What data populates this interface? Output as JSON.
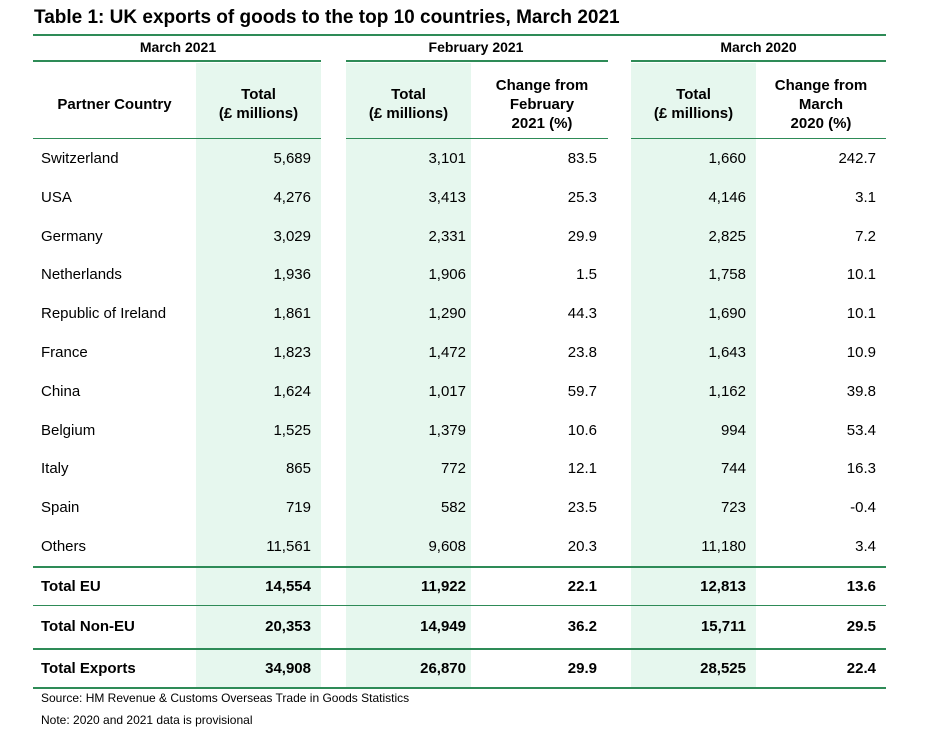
{
  "title": "Table 1: UK exports of goods to the top 10 countries, March 2021",
  "groups": {
    "march2021": "March 2021",
    "feb2021": "February 2021",
    "march2020": "March 2020"
  },
  "headers": {
    "country": "Partner Country",
    "total_mar21": "Total\n(£ millions)",
    "total_feb21": "Total\n(£ millions)",
    "change_feb": "Change from\nFebruary\n2021 (%)",
    "total_mar20": "Total\n(£ millions)",
    "change_mar": "Change from\nMarch\n2020 (%)"
  },
  "rows": [
    {
      "country": "Switzerland",
      "mar21": "5,689",
      "feb21": "3,101",
      "chg_feb": "83.5",
      "mar20": "1,660",
      "chg_mar": "242.7"
    },
    {
      "country": "USA",
      "mar21": "4,276",
      "feb21": "3,413",
      "chg_feb": "25.3",
      "mar20": "4,146",
      "chg_mar": "3.1"
    },
    {
      "country": "Germany",
      "mar21": "3,029",
      "feb21": "2,331",
      "chg_feb": "29.9",
      "mar20": "2,825",
      "chg_mar": "7.2"
    },
    {
      "country": "Netherlands",
      "mar21": "1,936",
      "feb21": "1,906",
      "chg_feb": "1.5",
      "mar20": "1,758",
      "chg_mar": "10.1"
    },
    {
      "country": "Republic of Ireland",
      "mar21": "1,861",
      "feb21": "1,290",
      "chg_feb": "44.3",
      "mar20": "1,690",
      "chg_mar": "10.1"
    },
    {
      "country": "France",
      "mar21": "1,823",
      "feb21": "1,472",
      "chg_feb": "23.8",
      "mar20": "1,643",
      "chg_mar": "10.9"
    },
    {
      "country": "China",
      "mar21": "1,624",
      "feb21": "1,017",
      "chg_feb": "59.7",
      "mar20": "1,162",
      "chg_mar": "39.8"
    },
    {
      "country": "Belgium",
      "mar21": "1,525",
      "feb21": "1,379",
      "chg_feb": "10.6",
      "mar20": "994",
      "chg_mar": "53.4"
    },
    {
      "country": "Italy",
      "mar21": "865",
      "feb21": "772",
      "chg_feb": "12.1",
      "mar20": "744",
      "chg_mar": "16.3"
    },
    {
      "country": "Spain",
      "mar21": "719",
      "feb21": "582",
      "chg_feb": "23.5",
      "mar20": "723",
      "chg_mar": "-0.4"
    },
    {
      "country": "Others",
      "mar21": "11,561",
      "feb21": "9,608",
      "chg_feb": "20.3",
      "mar20": "11,180",
      "chg_mar": "3.4"
    }
  ],
  "totals": [
    {
      "country": "Total EU",
      "mar21": "14,554",
      "feb21": "11,922",
      "chg_feb": "22.1",
      "mar20": "12,813",
      "chg_mar": "13.6"
    },
    {
      "country": "Total Non-EU",
      "mar21": "20,353",
      "feb21": "14,949",
      "chg_feb": "36.2",
      "mar20": "15,711",
      "chg_mar": "29.5"
    },
    {
      "country": "Total Exports",
      "mar21": "34,908",
      "feb21": "26,870",
      "chg_feb": "29.9",
      "mar20": "28,525",
      "chg_mar": "22.4"
    }
  ],
  "source": "Source: HM Revenue & Customs Overseas Trade in Goods Statistics",
  "note": "Note: 2020 and 2021 data is provisional",
  "colors": {
    "accent": "#2e8b57",
    "shade": "#e6f7ee"
  }
}
